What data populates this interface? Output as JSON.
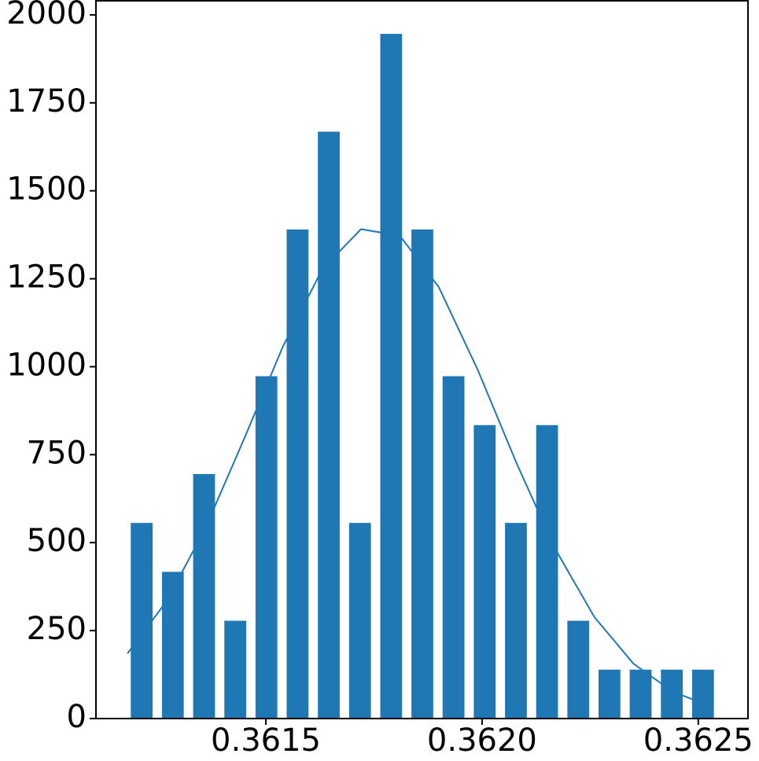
{
  "chart_data": {
    "type": "histogram",
    "bins": [
      0.3611767,
      0.3612488,
      0.3613209,
      0.3613931,
      0.3614652,
      0.3615373,
      0.3616094,
      0.3616816,
      0.3617537,
      0.3618258,
      0.3618979,
      0.36197,
      0.3620422,
      0.3621143,
      0.3621864,
      0.3622585,
      0.3623306,
      0.3624028,
      0.3624749,
      0.362547
    ],
    "values": [
      556,
      417,
      695,
      278,
      973,
      1390,
      1668,
      556,
      1946,
      1390,
      973,
      834,
      556,
      834,
      278,
      139,
      139,
      139,
      139
    ],
    "color": "#1f77b4",
    "rwidth": 0.7,
    "curve": {
      "type": "line",
      "color": "#1f77b4",
      "x": [
        0.36118,
        0.36127,
        0.36136,
        0.36145,
        0.36154,
        0.36163,
        0.36172,
        0.36181,
        0.3619,
        0.36199,
        0.36208,
        0.36217,
        0.36226,
        0.36235,
        0.36244,
        0.36253
      ],
      "values": [
        185,
        333,
        541,
        796,
        1059,
        1276,
        1391,
        1372,
        1226,
        991,
        725,
        480,
        288,
        156,
        77,
        34
      ]
    },
    "xlim": [
      0.361107,
      0.362615
    ],
    "xticks": [
      0.3615,
      {
        "value": 0.362,
        "label": "0.3620"
      },
      0.3625
    ],
    "ylim": [
      0,
      2040
    ],
    "yticks": [
      0,
      250,
      500,
      750,
      1000,
      1250,
      1500,
      1750,
      2000
    ]
  }
}
